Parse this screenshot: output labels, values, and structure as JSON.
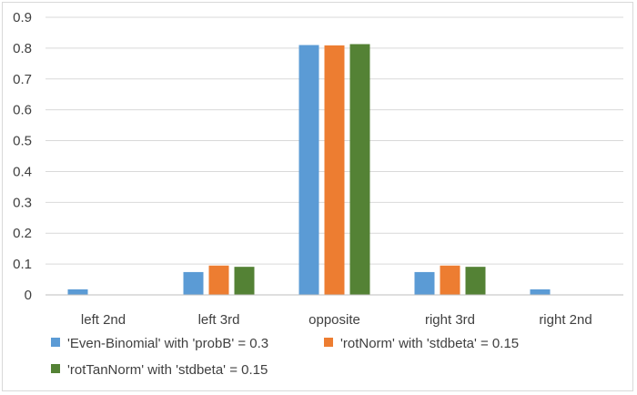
{
  "chart_data": {
    "type": "bar",
    "categories": [
      "left 2nd",
      "left 3rd",
      "opposite",
      "right 3rd",
      "right 2nd"
    ],
    "series": [
      {
        "name": "'Even-Binomial' with 'probB' = 0.3",
        "color": "#5b9bd5",
        "values": [
          0.018,
          0.074,
          0.81,
          0.074,
          0.018
        ]
      },
      {
        "name": "'rotNorm' with 'stdbeta' = 0.15",
        "color": "#ed7d31",
        "values": [
          0.001,
          0.095,
          0.809,
          0.095,
          0.001
        ]
      },
      {
        "name": "'rotTanNorm' with 'stdbeta' = 0.15",
        "color": "#548235",
        "values": [
          0.001,
          0.091,
          0.813,
          0.091,
          0.001
        ]
      }
    ],
    "yticks": [
      "0",
      "0.1",
      "0.2",
      "0.3",
      "0.4",
      "0.5",
      "0.6",
      "0.7",
      "0.8",
      "0.9"
    ],
    "ylim": [
      0,
      0.9
    ],
    "grid": true,
    "legend_position": "bottom",
    "title": "",
    "xlabel": "",
    "ylabel": ""
  }
}
